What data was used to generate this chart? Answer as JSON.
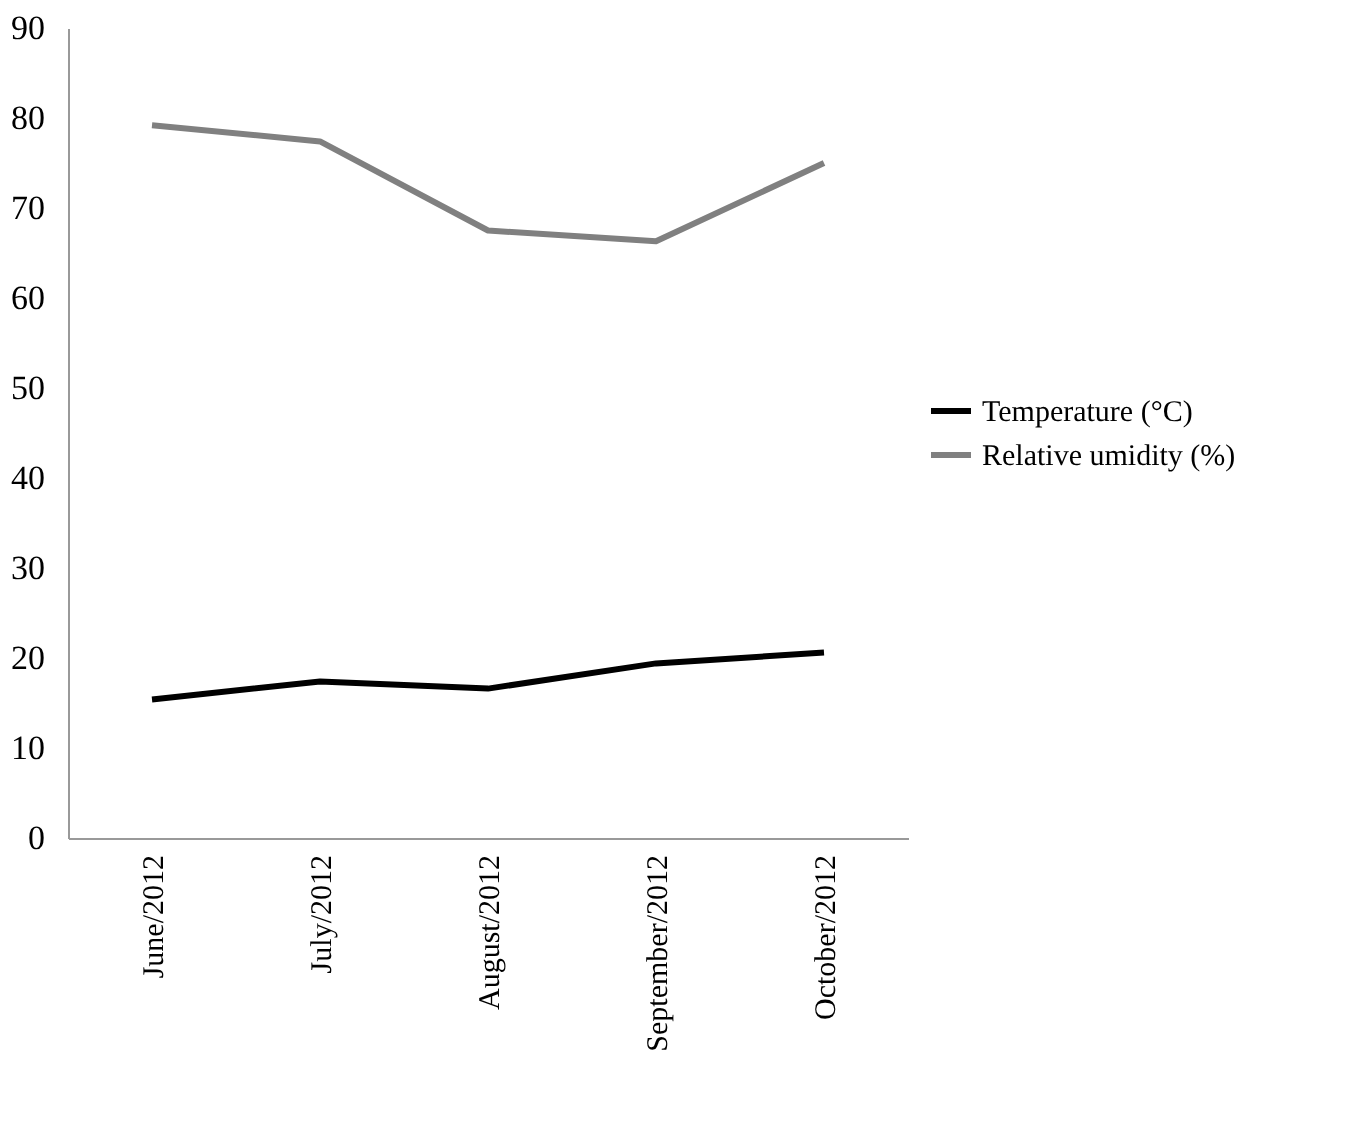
{
  "chart_data": {
    "type": "line",
    "categories": [
      "June/2012",
      "July/2012",
      "August/2012",
      "September/2012",
      "October/2012"
    ],
    "series": [
      {
        "name": "Temperature (°C)",
        "color": "#000000",
        "values": [
          15.4,
          17.4,
          16.6,
          19.4,
          20.6
        ]
      },
      {
        "name": "Relative umidity (%)",
        "color": "#808080",
        "values": [
          79.2,
          77.4,
          67.5,
          66.3,
          75.0
        ]
      }
    ],
    "ylim": [
      0,
      90
    ],
    "yticks": [
      0,
      10,
      20,
      30,
      40,
      50,
      60,
      70,
      80,
      90
    ],
    "grid": false,
    "legend": "right",
    "marker": "none",
    "line_style": "solid"
  }
}
